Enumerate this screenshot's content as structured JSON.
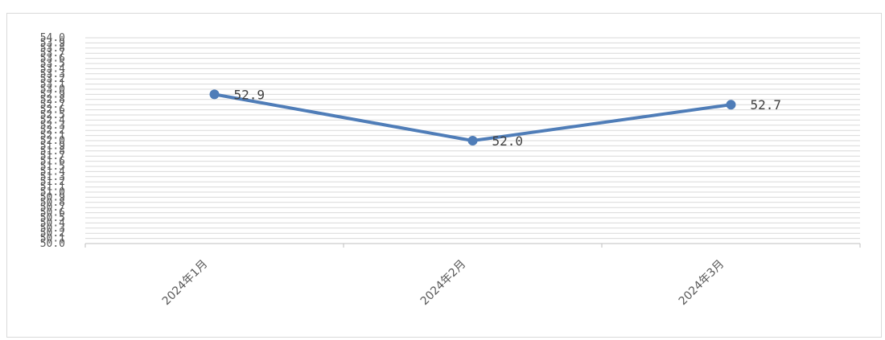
{
  "chart_data": {
    "type": "line",
    "categories": [
      "2024年1月",
      "2024年2月",
      "2024年3月"
    ],
    "series": [
      {
        "values": [
          52.9,
          52.0,
          52.7
        ],
        "labels": [
          "52.9",
          "52.0",
          "52.7"
        ],
        "color": "#4f7db8"
      }
    ],
    "ylim": [
      50.0,
      54.0
    ],
    "ytick_step": 0.1,
    "ytick_labels": [
      "50.0",
      "50.1",
      "50.2",
      "50.3",
      "50.4",
      "50.5",
      "50.6",
      "50.7",
      "50.8",
      "50.9",
      "51.0",
      "51.1",
      "51.2",
      "51.3",
      "51.4",
      "51.5",
      "51.6",
      "51.7",
      "51.8",
      "51.9",
      "52.0",
      "52.1",
      "52.2",
      "52.3",
      "52.4",
      "52.5",
      "52.6",
      "52.7",
      "52.8",
      "52.9",
      "53.0",
      "53.1",
      "53.2",
      "53.3",
      "53.4",
      "53.5",
      "53.6",
      "53.7",
      "53.8",
      "53.9",
      "54.0"
    ],
    "grid": true,
    "gridline_color": "#d9d9d9",
    "legend": "none",
    "title": "",
    "xlabel": "",
    "ylabel": ""
  }
}
